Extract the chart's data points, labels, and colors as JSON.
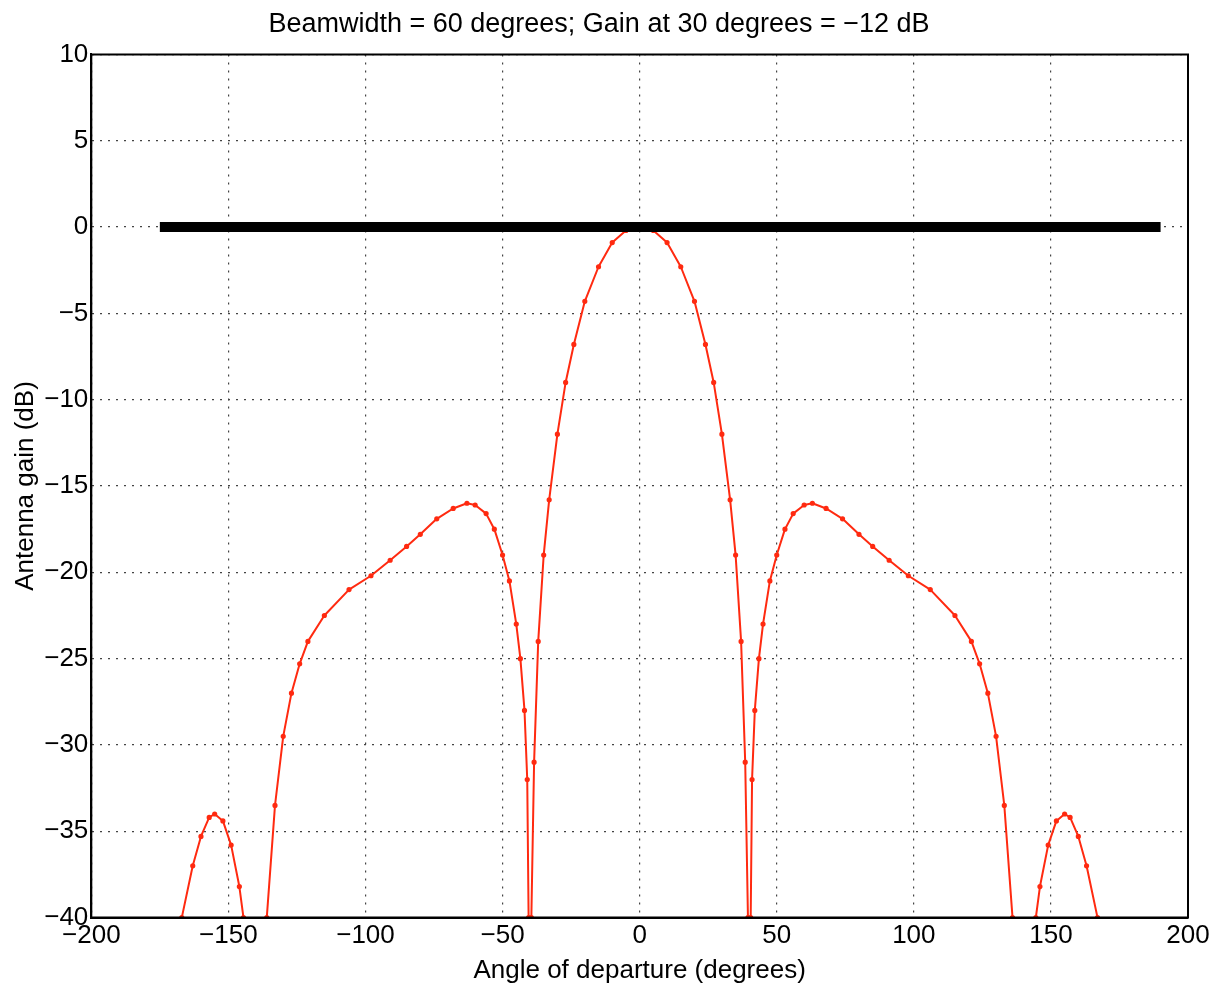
{
  "chart_data": {
    "type": "line",
    "title": "Beamwidth = 60 degrees; Gain at 30 degrees = −12 dB",
    "xlabel": "Angle of departure (degrees)",
    "ylabel": "Antenna gain (dB)",
    "xlim": [
      -200,
      200
    ],
    "xticks": [
      -200,
      -150,
      -100,
      -50,
      0,
      50,
      100,
      150,
      200
    ],
    "ylim": [
      -40,
      10
    ],
    "yticks": [
      10,
      5,
      0,
      -5,
      -10,
      -15,
      -20,
      -25,
      -30,
      -35,
      -40
    ],
    "grid": true,
    "legend": false,
    "series": [
      {
        "color": "#ff2a10",
        "marker": "circle",
        "line_style": "solid",
        "x": [
          -167,
          -163,
          -160,
          -157,
          -155,
          -152,
          -149,
          -146,
          -144.5,
          null,
          -136,
          -133,
          -130,
          -127,
          -124,
          -121,
          -115,
          -106,
          -98,
          -91,
          -85,
          -80,
          -74,
          -68,
          -63,
          -60,
          -56,
          -53,
          -50,
          -47.5,
          -45,
          -43.5,
          -42,
          -41,
          -40.5,
          null,
          -39.5,
          -38.5,
          -37,
          -35,
          -33,
          -30,
          -27,
          -24,
          -20,
          -15,
          -10,
          -5,
          0,
          5,
          10,
          15,
          20,
          24,
          27,
          30,
          33,
          35,
          37,
          38.5,
          39.5,
          null,
          40.5,
          41,
          42,
          43.5,
          45,
          47.5,
          50,
          53,
          56,
          60,
          63,
          68,
          74,
          80,
          85,
          91,
          98,
          106,
          115,
          121,
          124,
          127,
          130,
          133,
          136,
          null,
          144.5,
          146,
          149,
          152,
          155,
          157,
          160,
          163,
          167
        ],
        "values": [
          -40,
          -37,
          -35.3,
          -34.2,
          -34,
          -34.4,
          -35.8,
          -38.2,
          -40,
          null,
          -40,
          -33.5,
          -29.5,
          -27,
          -25.3,
          -24,
          -22.5,
          -21,
          -20.2,
          -19.3,
          -18.5,
          -17.8,
          -16.9,
          -16.3,
          -16,
          -16.1,
          -16.6,
          -17.5,
          -19,
          -20.5,
          -23,
          -25,
          -28,
          -32,
          -40,
          null,
          -40,
          -31,
          -24,
          -19,
          -15.8,
          -12,
          -9,
          -6.8,
          -4.3,
          -2.3,
          -0.9,
          -0.2,
          0,
          -0.2,
          -0.9,
          -2.3,
          -4.3,
          -6.8,
          -9,
          -12,
          -15.8,
          -19,
          -24,
          -31,
          -40,
          null,
          -40,
          -32,
          -28,
          -25,
          -23,
          -20.5,
          -19,
          -17.5,
          -16.6,
          -16.1,
          -16,
          -16.3,
          -16.9,
          -17.8,
          -18.5,
          -19.3,
          -20.2,
          -21,
          -22.5,
          -24,
          -25.3,
          -27,
          -29.5,
          -33.5,
          -40,
          null,
          -40,
          -38.2,
          -35.8,
          -34.4,
          -34,
          -34.2,
          -35.3,
          -37,
          -40
        ]
      },
      {
        "color": "#000000",
        "marker": "none",
        "line_style": "solid",
        "x": [
          -175,
          190
        ],
        "values": [
          0,
          0
        ]
      }
    ]
  }
}
